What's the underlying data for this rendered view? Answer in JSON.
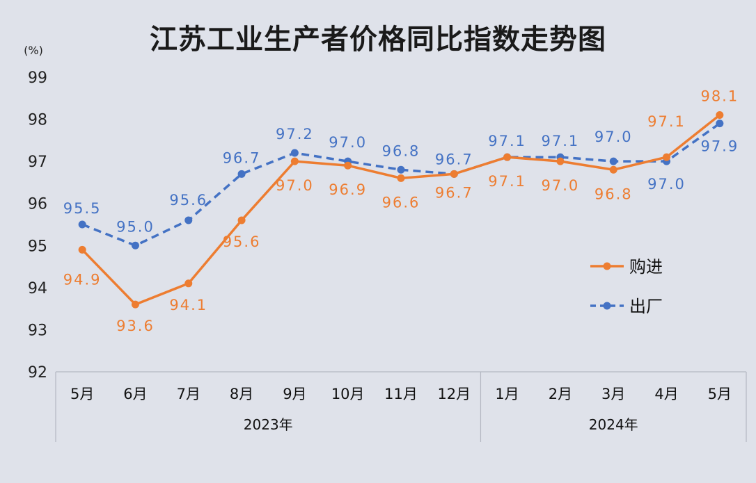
{
  "chart_data": {
    "type": "line",
    "title": "江苏工业生产者价格同比指数走势图",
    "unit_label": "(%)",
    "ylim": [
      92,
      99
    ],
    "yticks": [
      "92",
      "93",
      "94",
      "95",
      "96",
      "97",
      "98",
      "99"
    ],
    "grid": false,
    "legend_position": "right",
    "categories": [
      "5月",
      "6月",
      "7月",
      "8月",
      "9月",
      "10月",
      "11月",
      "12月",
      "1月",
      "2月",
      "3月",
      "4月",
      "5月"
    ],
    "year_groups": [
      {
        "label": "2023年",
        "count": 8
      },
      {
        "label": "2024年",
        "count": 5
      }
    ],
    "series": [
      {
        "name": "购进",
        "color": "#ed7d31",
        "style": "solid",
        "values": [
          94.9,
          93.6,
          94.1,
          95.6,
          97.0,
          96.9,
          96.6,
          96.7,
          97.1,
          97.0,
          96.8,
          97.1,
          98.1
        ],
        "labels": [
          "94.9",
          "93.6",
          "94.1",
          "95.6",
          "97.0",
          "96.9",
          "96.6",
          "96.7",
          "97.1",
          "97.0",
          "96.8",
          "97.1",
          "98.1"
        ]
      },
      {
        "name": "出厂",
        "color": "#4472c4",
        "style": "dashed",
        "values": [
          95.5,
          95.0,
          95.6,
          96.7,
          97.2,
          97.0,
          96.8,
          96.7,
          97.1,
          97.1,
          97.0,
          97.0,
          97.9
        ],
        "labels": [
          "95.5",
          "95.0",
          "95.6",
          "96.7",
          "97.2",
          "97.0",
          "96.8",
          "96.7",
          "97.1",
          "97.1",
          "97.0",
          "97.0",
          "97.9"
        ]
      }
    ]
  }
}
